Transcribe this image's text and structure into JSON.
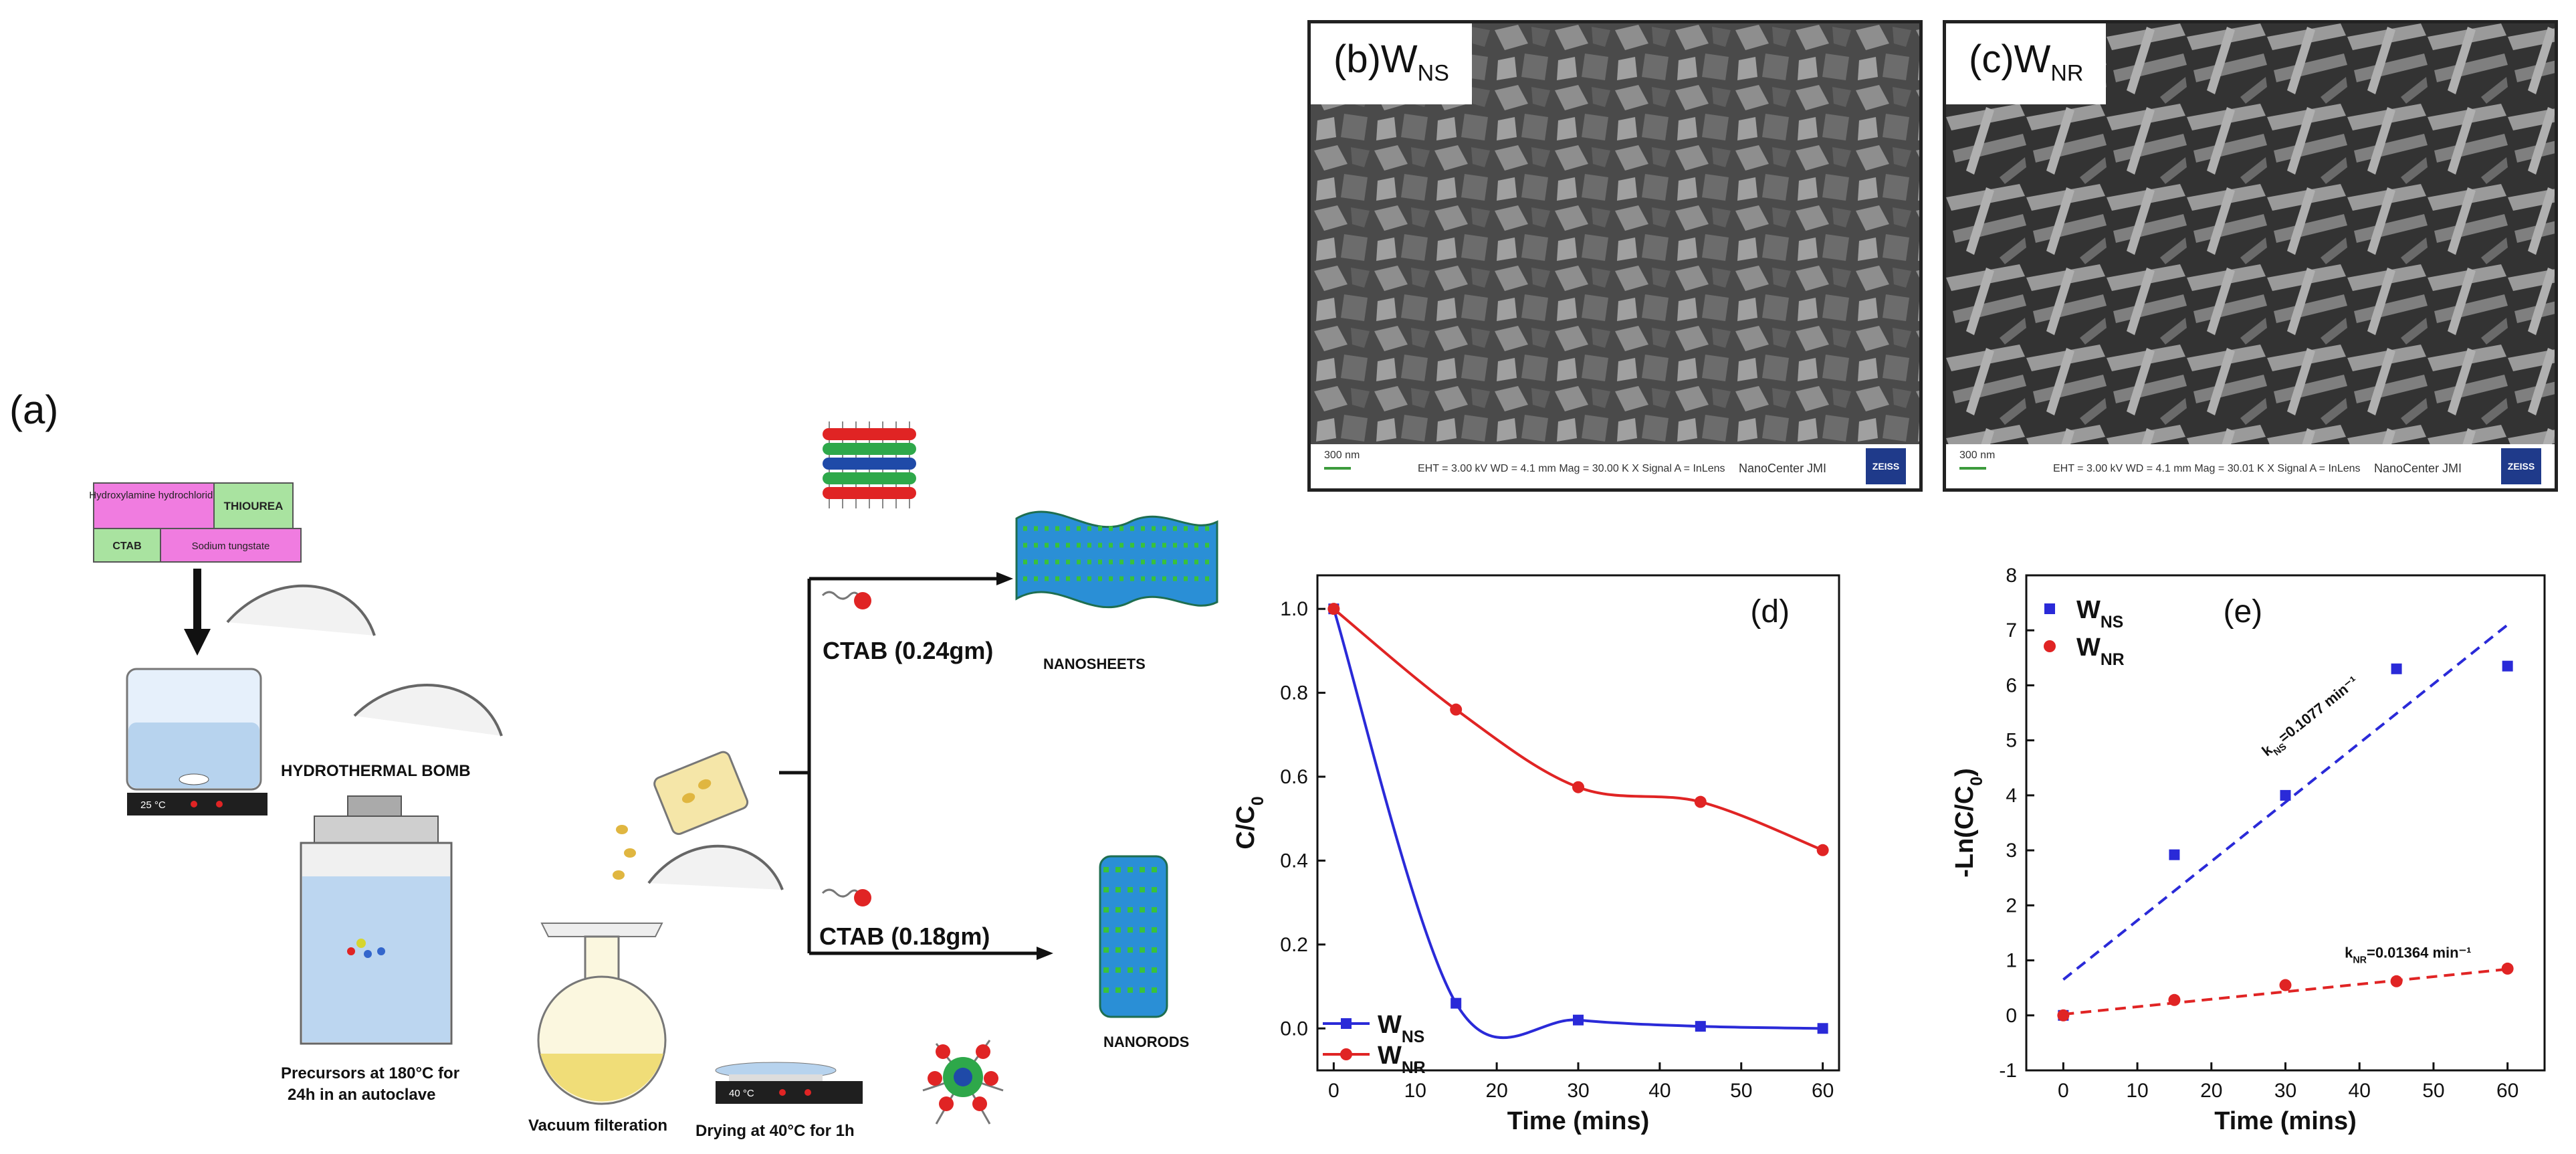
{
  "panel_a": {
    "label": "(a)",
    "reagents": {
      "hydroxylamine": "Hydroxylamine hydrochloride",
      "thiourea": "THIOUREA",
      "ctab": "CTAB",
      "sodium": "Sodium tungstate"
    },
    "stirrer1_temp": "25 °C",
    "bomb_label": "HYDROTHERMAL BOMB",
    "precursor_label_1": "Precursors at 180°C for",
    "precursor_label_2": "24h in an autoclave",
    "vacuum_label": "Vacuum filteration",
    "stirrer2_temp": "40 °C",
    "drying_label": "Drying at 40°C for 1h",
    "ctab_high": "CTAB (0.24gm)",
    "ctab_low": "CTAB (0.18gm)",
    "nanosheets": "NANOSHEETS",
    "nanorods": "NANORODS"
  },
  "panel_b": {
    "label_prefix": "(b)W",
    "label_sub": "NS",
    "scale": "300 nm",
    "info": "EHT = 3.00 kV    WD = 4.1 mm    Mag = 30.00 K X    Signal A = InLens",
    "center": "NanoCenter JMI",
    "logo": "ZEISS"
  },
  "panel_c": {
    "label_prefix": "(c)W",
    "label_sub": "NR",
    "scale": "300 nm",
    "info": "EHT = 3.00 kV    WD = 4.1 mm    Mag = 30.01 K X    Signal A = InLens",
    "center": "NanoCenter JMI",
    "logo": "ZEISS"
  },
  "chart_data": [
    {
      "type": "line",
      "panel_label": "(d)",
      "xlabel": "Time (mins)",
      "ylabel_main": "C/C",
      "ylabel_sub": "0",
      "xlim": [
        -2,
        62
      ],
      "ylim": [
        -0.1,
        1.08
      ],
      "xticks": [
        0,
        10,
        20,
        30,
        40,
        50,
        60
      ],
      "yticks": [
        0.0,
        0.2,
        0.4,
        0.6,
        0.8,
        1.0
      ],
      "legend_position": "bottom-left",
      "series": [
        {
          "name_main": "W",
          "name_sub": "NS",
          "color": "#2a2ad8",
          "marker": "square",
          "x": [
            0,
            15,
            30,
            45,
            60
          ],
          "y": [
            1.0,
            0.06,
            0.02,
            0.005,
            0.0
          ]
        },
        {
          "name_main": "W",
          "name_sub": "NR",
          "color": "#e02424",
          "marker": "circle",
          "x": [
            0,
            15,
            30,
            45,
            60
          ],
          "y": [
            1.0,
            0.76,
            0.575,
            0.54,
            0.425
          ]
        }
      ]
    },
    {
      "type": "scatter",
      "panel_label": "(e)",
      "xlabel": "Time (mins)",
      "ylabel_main": "-Ln(C/C",
      "ylabel_sub": "0",
      "ylabel_end": ")",
      "xlim": [
        -5,
        65
      ],
      "ylim": [
        -1,
        8
      ],
      "xticks": [
        0,
        10,
        20,
        30,
        40,
        50,
        60
      ],
      "yticks": [
        -1,
        0,
        1,
        2,
        3,
        4,
        5,
        6,
        7,
        8
      ],
      "legend_position": "top-left",
      "series": [
        {
          "name_main": "W",
          "name_sub": "NS",
          "color": "#2a2ad8",
          "marker": "square",
          "x": [
            0,
            15,
            30,
            45,
            60
          ],
          "y": [
            0.0,
            2.92,
            4.0,
            6.3,
            6.35
          ]
        },
        {
          "name_main": "W",
          "name_sub": "NR",
          "color": "#e02424",
          "marker": "circle",
          "x": [
            0,
            15,
            30,
            45,
            60
          ],
          "y": [
            0.0,
            0.28,
            0.55,
            0.62,
            0.85
          ]
        }
      ],
      "fits": [
        {
          "series": "NS",
          "x": [
            0,
            60
          ],
          "y": [
            0.65,
            7.1
          ],
          "label_main": "k",
          "label_sub": "NS",
          "label_end": "=0.1077 min⁻¹",
          "color": "#2a2ad8"
        },
        {
          "series": "NR",
          "x": [
            0,
            60
          ],
          "y": [
            0.02,
            0.84
          ],
          "label_main": "k",
          "label_sub": "NR",
          "label_end": "=0.01364 min⁻¹",
          "color": "#e02424"
        }
      ]
    }
  ]
}
